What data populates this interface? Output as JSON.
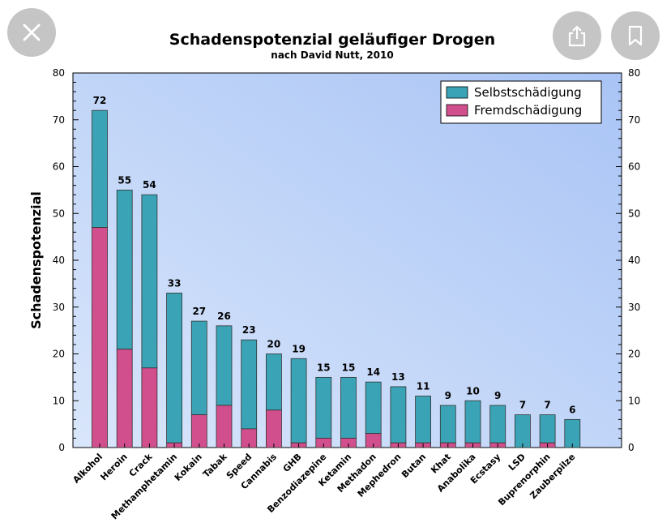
{
  "overlay": {
    "close_icon": "close-icon",
    "share_icon": "share-icon",
    "bookmark_icon": "bookmark-icon"
  },
  "colors": {
    "selbst": "#3aa3b5",
    "fremd": "#d14f8c",
    "plot_bg_start": "#d9e6fb",
    "plot_bg_end": "#a9c4f5"
  },
  "chart_data": {
    "type": "bar",
    "stacked": true,
    "title": "Schadenspotenzial geläufiger Drogen",
    "subtitle": "nach David Nutt, 2010",
    "xlabel": "",
    "ylabel": "Schadenspotenzial",
    "ylim": [
      0,
      80
    ],
    "yticks": [
      0,
      10,
      20,
      30,
      40,
      50,
      60,
      70,
      80
    ],
    "legend_position": "top-right",
    "categories": [
      "Alkohol",
      "Heroin",
      "Crack",
      "Methamphetamin",
      "Kokain",
      "Tabak",
      "Speed",
      "Cannabis",
      "GHB",
      "Benzodiazepine",
      "Ketamin",
      "Methadon",
      "Mephedron",
      "Butan",
      "Khat",
      "Anabolika",
      "Ecstasy",
      "LSD",
      "Buprenorphin",
      "Zauberpilze"
    ],
    "totals": [
      72,
      55,
      54,
      33,
      27,
      26,
      23,
      20,
      19,
      15,
      15,
      14,
      13,
      11,
      9,
      10,
      9,
      7,
      7,
      6
    ],
    "series": [
      {
        "name": "Fremdschädigung",
        "values": [
          47,
          21,
          17,
          1,
          7,
          9,
          4,
          8,
          1,
          2,
          2,
          3,
          1,
          1,
          1,
          1,
          1,
          0,
          1,
          0
        ]
      },
      {
        "name": "Selbstschädigung",
        "values": [
          25,
          34,
          37,
          32,
          20,
          17,
          19,
          12,
          18,
          13,
          13,
          11,
          12,
          10,
          8,
          9,
          8,
          7,
          6,
          6
        ]
      }
    ],
    "legend": [
      "Selbstschädigung",
      "Fremdschädigung"
    ]
  }
}
